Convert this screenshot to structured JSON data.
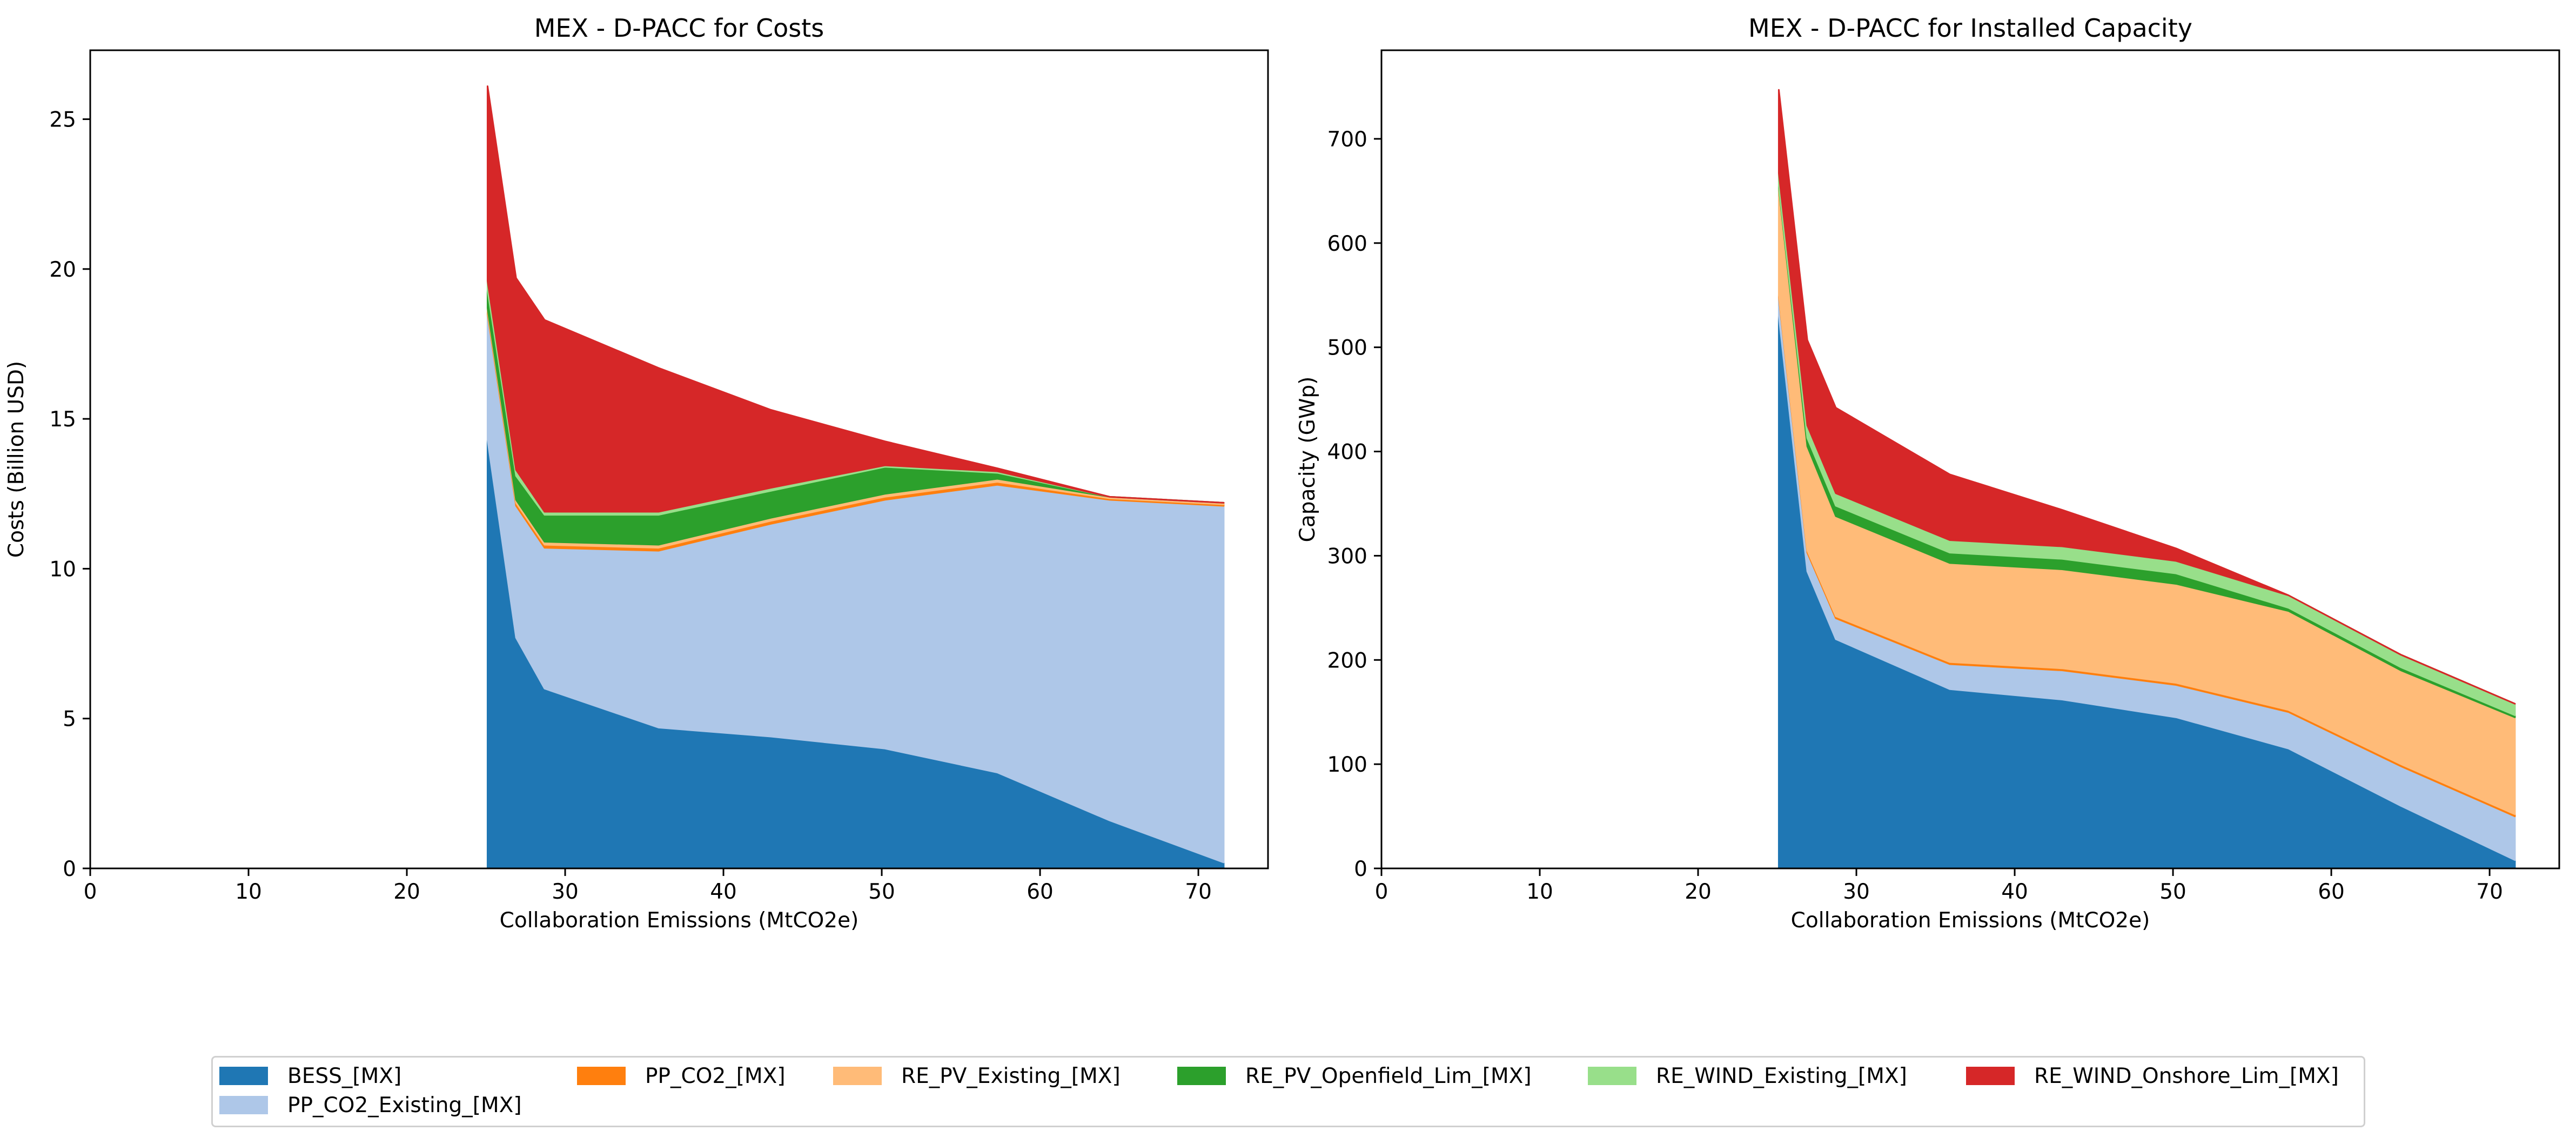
{
  "colors": {
    "BESS_[MX]": "#1f77b4",
    "PP_CO2_Existing_[MX]": "#aec7e8",
    "PP_CO2_[MX]": "#ff7f0e",
    "RE_PV_Existing_[MX]": "#ffbb78",
    "RE_PV_Openfield_Lim_[MX]": "#2ca02c",
    "RE_WIND_Existing_[MX]": "#98df8a",
    "RE_WIND_Onshore_Lim_[MX]": "#d62728"
  },
  "legend": {
    "placement": "bottom-center",
    "entries": [
      "BESS_[MX]",
      "PP_CO2_Existing_[MX]",
      "PP_CO2_[MX]",
      "RE_PV_Existing_[MX]",
      "RE_PV_Openfield_Lim_[MX]",
      "RE_WIND_Existing_[MX]",
      "RE_WIND_Onshore_Lim_[MX]"
    ]
  },
  "chart_data": [
    {
      "type": "area",
      "stacked": true,
      "title": "MEX - D-PACC for Costs",
      "xlabel": "Collaboration Emissions (MtCO2e)",
      "ylabel": "Costs (Billion USD)",
      "xlim": [
        0,
        74.4
      ],
      "ylim": [
        0,
        27.3
      ],
      "xticks": [
        0,
        10,
        20,
        30,
        40,
        50,
        60,
        70
      ],
      "yticks": [
        0,
        5,
        10,
        15,
        20,
        25
      ],
      "grid": false,
      "x": [
        25.1,
        26.9,
        28.7,
        35.9,
        43.0,
        50.2,
        57.3,
        64.4,
        71.6
      ],
      "series": [
        {
          "name": "BESS_[MX]",
          "values": [
            14.3,
            7.7,
            6.0,
            4.7,
            4.4,
            4.0,
            3.2,
            1.6,
            0.2
          ]
        },
        {
          "name": "PP_CO2_Existing_[MX]",
          "values": [
            4.2,
            4.4,
            4.7,
            5.9,
            7.1,
            8.3,
            9.6,
            10.7,
            11.9
          ]
        },
        {
          "name": "PP_CO2_[MX]",
          "values": [
            0.1,
            0.1,
            0.1,
            0.1,
            0.1,
            0.1,
            0.1,
            0.05,
            0.05
          ]
        },
        {
          "name": "RE_PV_Existing_[MX]",
          "values": [
            0.1,
            0.1,
            0.1,
            0.1,
            0.1,
            0.1,
            0.1,
            0.05,
            0.05
          ]
        },
        {
          "name": "RE_PV_Openfield_Lim_[MX]",
          "values": [
            0.6,
            0.8,
            0.9,
            1.0,
            0.9,
            0.9,
            0.2,
            0.0,
            0.0
          ]
        },
        {
          "name": "RE_WIND_Existing_[MX]",
          "values": [
            0.3,
            0.2,
            0.1,
            0.1,
            0.1,
            0.05,
            0.05,
            0.0,
            0.0
          ]
        },
        {
          "name": "RE_WIND_Onshore_Lim_[MX]",
          "values": [
            6.5,
            6.4,
            6.4,
            4.8,
            2.6,
            0.8,
            0.1,
            0.0,
            0.0
          ]
        }
      ]
    },
    {
      "type": "area",
      "stacked": true,
      "title": "MEX - D-PACC for Installed Capacity",
      "xlabel": "Collaboration Emissions (MtCO2e)",
      "ylabel": "Capacity (GWp)",
      "xlim": [
        0,
        74.4
      ],
      "ylim": [
        0,
        785
      ],
      "xticks": [
        0,
        10,
        20,
        30,
        40,
        50,
        60,
        70
      ],
      "yticks": [
        0,
        100,
        200,
        300,
        400,
        500,
        600,
        700
      ],
      "grid": false,
      "x": [
        25.1,
        26.9,
        28.7,
        35.9,
        43.0,
        50.2,
        57.3,
        64.4,
        71.6
      ],
      "series": [
        {
          "name": "BESS_[MX]",
          "values": [
            530,
            285,
            220,
            172,
            162,
            145,
            115,
            60,
            8
          ]
        },
        {
          "name": "PP_CO2_Existing_[MX]",
          "values": [
            18,
            18,
            20,
            24,
            28,
            31,
            35,
            38,
            42
          ]
        },
        {
          "name": "PP_CO2_[MX]",
          "values": [
            2,
            2,
            2,
            2,
            2,
            2,
            2,
            2,
            2
          ]
        },
        {
          "name": "RE_PV_Existing_[MX]",
          "values": [
            103,
            100,
            96,
            95,
            95,
            95,
            95,
            90,
            93
          ]
        },
        {
          "name": "RE_PV_Openfield_Lim_[MX]",
          "values": [
            2,
            8,
            10,
            10,
            10,
            10,
            3,
            3,
            2
          ]
        },
        {
          "name": "RE_WIND_Existing_[MX]",
          "values": [
            12,
            12,
            12,
            12,
            12,
            12,
            12,
            12,
            11
          ]
        },
        {
          "name": "RE_WIND_Onshore_Lim_[MX]",
          "values": [
            80,
            82,
            82,
            63,
            35,
            12,
            0,
            0,
            0
          ]
        }
      ]
    }
  ]
}
